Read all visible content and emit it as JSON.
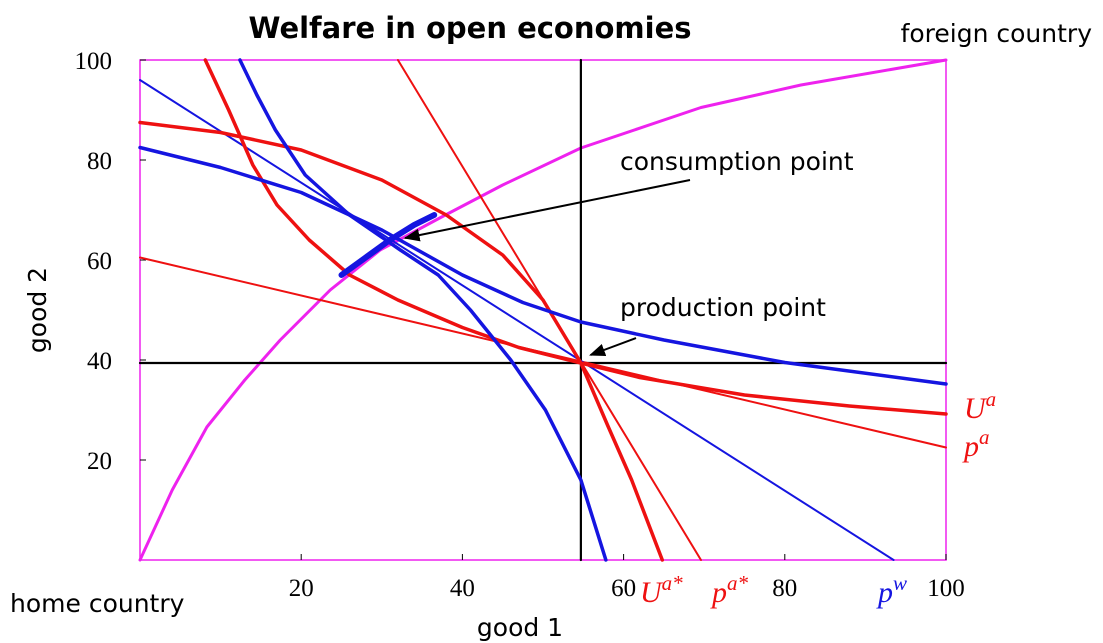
{
  "chart_data": {
    "type": "line",
    "title": "Welfare in open economies",
    "xlabel": "good 1",
    "ylabel": "good 2",
    "corner_labels": [
      "home country",
      "foreign country"
    ],
    "xlim": [
      0,
      100
    ],
    "ylim": [
      0,
      100
    ],
    "xticks": [
      20,
      40,
      60,
      80,
      100
    ],
    "yticks": [
      20,
      40,
      60,
      80,
      100
    ],
    "series": [
      {
        "color": "#ee22ee",
        "width": 3,
        "x": [
          0,
          4,
          8.3,
          13,
          17.4,
          23.6,
          29.8,
          37.3,
          45,
          54.7,
          69.6,
          82,
          100
        ],
        "values": [
          0,
          14,
          26.6,
          36,
          44,
          54,
          62,
          68.5,
          75,
          82.4,
          90.5,
          95,
          100
        ]
      },
      {
        "color": "#000000",
        "width": 2.2,
        "x": [
          54.7,
          54.7
        ],
        "values": [
          0,
          100
        ]
      },
      {
        "color": "#000000",
        "width": 2.2,
        "x": [
          0,
          100
        ],
        "values": [
          39.4,
          39.4
        ]
      },
      {
        "name": "p",
        "sup": "a",
        "color": "#ee1111",
        "width": 2,
        "x": [
          0,
          100
        ],
        "values": [
          60.5,
          22.5
        ]
      },
      {
        "name": "p",
        "sup": "a*",
        "color": "#ee1111",
        "width": 2,
        "x": [
          32,
          69.6
        ],
        "values": [
          100,
          0
        ]
      },
      {
        "name": "p",
        "sup": "w",
        "color": "#1515e0",
        "width": 2,
        "x": [
          0,
          93.5
        ],
        "values": [
          96,
          0
        ]
      },
      {
        "name": "U",
        "sup": "a",
        "color": "#ee1111",
        "width": 3.5,
        "x": [
          0,
          10,
          20,
          30,
          38,
          45,
          50,
          54.7,
          62,
          75,
          88,
          100
        ],
        "values": [
          87.5,
          85.5,
          82,
          76,
          69,
          61,
          52,
          39.4,
          36.5,
          33,
          30.8,
          29.2
        ]
      },
      {
        "name": "U",
        "sup": "a*",
        "color": "#ee1111",
        "width": 3.5,
        "x": [
          8.1,
          11,
          14,
          17,
          21,
          26,
          32,
          40,
          47,
          54.7,
          58,
          61,
          64.8
        ],
        "values": [
          100,
          90,
          79,
          71,
          64,
          57,
          52,
          46.5,
          42.5,
          39.4,
          27,
          16,
          0
        ]
      },
      {
        "color": "#1515e0",
        "width": 3.5,
        "x": [
          0,
          10,
          20,
          30,
          40,
          47.5,
          54.7,
          65,
          80,
          100
        ],
        "values": [
          82.5,
          78.5,
          73.5,
          66,
          57,
          51.5,
          47.6,
          44,
          39.5,
          35.2
        ]
      },
      {
        "color": "#1515e0",
        "width": 3.5,
        "x": [
          12.4,
          14.5,
          16.8,
          20.5,
          26,
          32.3,
          37,
          41,
          46,
          50.3,
          54.7,
          57.8
        ],
        "values": [
          100,
          93,
          86,
          77,
          69,
          62,
          57,
          50,
          40,
          30,
          16,
          0
        ]
      },
      {
        "color": "#1515e0",
        "width": 6,
        "x": [
          25,
          28,
          31,
          34,
          36.5
        ],
        "values": [
          57,
          60.5,
          64,
          67,
          69
        ]
      }
    ],
    "annotations": [
      {
        "text": "consumption point",
        "xy": [
          32.9,
          64.4
        ]
      },
      {
        "text": "production point",
        "xy": [
          55.9,
          41
        ]
      }
    ]
  }
}
